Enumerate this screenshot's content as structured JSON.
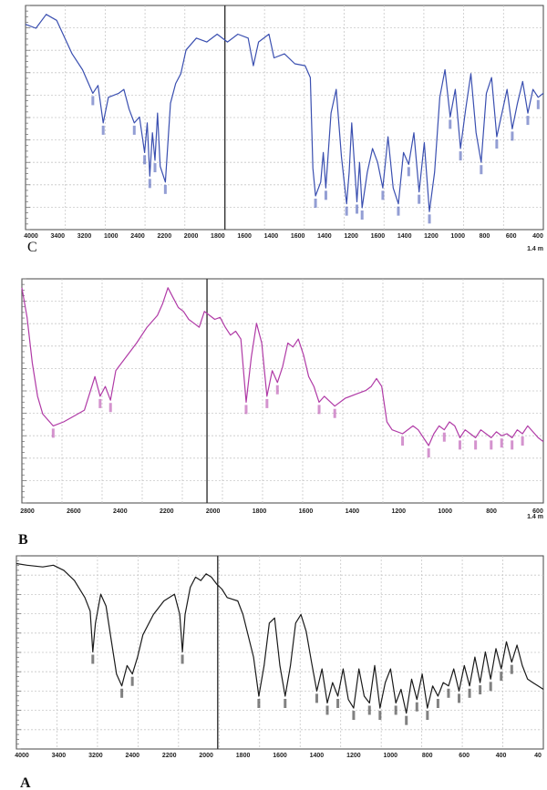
{
  "chart_data": [
    {
      "panel": "C",
      "type": "line",
      "label": "C",
      "unit_label": "1.4 m",
      "color": "#3a4fb0",
      "x_ticks": [
        "4000",
        "3400",
        "3200",
        "1000",
        "2400",
        "2200",
        "2000",
        "1800",
        "1600",
        "1400",
        "1600",
        "1400",
        "1200",
        "1600",
        "1400",
        "1200",
        "1000",
        "800",
        "600",
        "400"
      ],
      "split_at_fraction": 0.385,
      "profile": [
        [
          0.0,
          0.05
        ],
        [
          0.02,
          0.07
        ],
        [
          0.04,
          0.0
        ],
        [
          0.06,
          0.03
        ],
        [
          0.09,
          0.2
        ],
        [
          0.11,
          0.28
        ],
        [
          0.13,
          0.4
        ],
        [
          0.14,
          0.36
        ],
        [
          0.15,
          0.55
        ],
        [
          0.16,
          0.42
        ],
        [
          0.18,
          0.4
        ],
        [
          0.19,
          0.38
        ],
        [
          0.2,
          0.48
        ],
        [
          0.21,
          0.55
        ],
        [
          0.22,
          0.52
        ],
        [
          0.23,
          0.7
        ],
        [
          0.235,
          0.55
        ],
        [
          0.24,
          0.82
        ],
        [
          0.245,
          0.6
        ],
        [
          0.25,
          0.74
        ],
        [
          0.255,
          0.5
        ],
        [
          0.26,
          0.77
        ],
        [
          0.27,
          0.85
        ],
        [
          0.275,
          0.65
        ],
        [
          0.28,
          0.45
        ],
        [
          0.29,
          0.35
        ],
        [
          0.3,
          0.3
        ],
        [
          0.31,
          0.18
        ],
        [
          0.33,
          0.12
        ],
        [
          0.35,
          0.14
        ],
        [
          0.37,
          0.1
        ],
        [
          0.39,
          0.14
        ],
        [
          0.41,
          0.1
        ],
        [
          0.43,
          0.12
        ],
        [
          0.44,
          0.26
        ],
        [
          0.45,
          0.14
        ],
        [
          0.47,
          0.1
        ],
        [
          0.48,
          0.22
        ],
        [
          0.5,
          0.2
        ],
        [
          0.52,
          0.25
        ],
        [
          0.54,
          0.26
        ],
        [
          0.55,
          0.32
        ],
        [
          0.555,
          0.78
        ],
        [
          0.56,
          0.92
        ],
        [
          0.57,
          0.85
        ],
        [
          0.575,
          0.7
        ],
        [
          0.58,
          0.88
        ],
        [
          0.59,
          0.5
        ],
        [
          0.6,
          0.38
        ],
        [
          0.61,
          0.72
        ],
        [
          0.62,
          0.96
        ],
        [
          0.625,
          0.8
        ],
        [
          0.63,
          0.55
        ],
        [
          0.64,
          0.95
        ],
        [
          0.645,
          0.75
        ],
        [
          0.65,
          0.98
        ],
        [
          0.66,
          0.8
        ],
        [
          0.67,
          0.68
        ],
        [
          0.68,
          0.75
        ],
        [
          0.69,
          0.88
        ],
        [
          0.7,
          0.62
        ],
        [
          0.71,
          0.88
        ],
        [
          0.72,
          0.96
        ],
        [
          0.73,
          0.7
        ],
        [
          0.74,
          0.76
        ],
        [
          0.75,
          0.6
        ],
        [
          0.76,
          0.9
        ],
        [
          0.77,
          0.65
        ],
        [
          0.78,
          1.0
        ],
        [
          0.79,
          0.8
        ],
        [
          0.8,
          0.42
        ],
        [
          0.81,
          0.28
        ],
        [
          0.82,
          0.52
        ],
        [
          0.83,
          0.38
        ],
        [
          0.84,
          0.68
        ],
        [
          0.85,
          0.48
        ],
        [
          0.86,
          0.3
        ],
        [
          0.87,
          0.6
        ],
        [
          0.88,
          0.75
        ],
        [
          0.89,
          0.4
        ],
        [
          0.9,
          0.32
        ],
        [
          0.91,
          0.62
        ],
        [
          0.92,
          0.5
        ],
        [
          0.93,
          0.38
        ],
        [
          0.94,
          0.58
        ],
        [
          0.95,
          0.45
        ],
        [
          0.96,
          0.34
        ],
        [
          0.97,
          0.5
        ],
        [
          0.98,
          0.38
        ],
        [
          0.99,
          0.42
        ],
        [
          1.0,
          0.4
        ]
      ]
    },
    {
      "panel": "B",
      "type": "line",
      "label": "B",
      "unit_label": "1.4 m",
      "color": "#b03aa6",
      "x_ticks": [
        "2800",
        "2600",
        "2400",
        "2200",
        "2000",
        "1800",
        "1600",
        "1400",
        "1200",
        "1000",
        "800",
        "600"
      ],
      "split_at_fraction": 0.355,
      "profile": [
        [
          0.0,
          0.0
        ],
        [
          0.01,
          0.15
        ],
        [
          0.02,
          0.38
        ],
        [
          0.03,
          0.55
        ],
        [
          0.04,
          0.64
        ],
        [
          0.06,
          0.7
        ],
        [
          0.08,
          0.68
        ],
        [
          0.1,
          0.65
        ],
        [
          0.12,
          0.62
        ],
        [
          0.14,
          0.45
        ],
        [
          0.15,
          0.55
        ],
        [
          0.16,
          0.5
        ],
        [
          0.17,
          0.57
        ],
        [
          0.18,
          0.42
        ],
        [
          0.2,
          0.35
        ],
        [
          0.22,
          0.28
        ],
        [
          0.24,
          0.2
        ],
        [
          0.26,
          0.14
        ],
        [
          0.27,
          0.08
        ],
        [
          0.28,
          0.0
        ],
        [
          0.29,
          0.05
        ],
        [
          0.3,
          0.1
        ],
        [
          0.31,
          0.12
        ],
        [
          0.32,
          0.16
        ],
        [
          0.33,
          0.18
        ],
        [
          0.34,
          0.2
        ],
        [
          0.35,
          0.12
        ],
        [
          0.36,
          0.14
        ],
        [
          0.37,
          0.16
        ],
        [
          0.38,
          0.15
        ],
        [
          0.39,
          0.2
        ],
        [
          0.4,
          0.24
        ],
        [
          0.41,
          0.22
        ],
        [
          0.42,
          0.26
        ],
        [
          0.43,
          0.58
        ],
        [
          0.44,
          0.35
        ],
        [
          0.45,
          0.18
        ],
        [
          0.46,
          0.28
        ],
        [
          0.47,
          0.55
        ],
        [
          0.48,
          0.42
        ],
        [
          0.49,
          0.48
        ],
        [
          0.5,
          0.4
        ],
        [
          0.51,
          0.28
        ],
        [
          0.52,
          0.3
        ],
        [
          0.53,
          0.26
        ],
        [
          0.54,
          0.34
        ],
        [
          0.55,
          0.45
        ],
        [
          0.56,
          0.5
        ],
        [
          0.57,
          0.58
        ],
        [
          0.58,
          0.55
        ],
        [
          0.6,
          0.6
        ],
        [
          0.62,
          0.56
        ],
        [
          0.64,
          0.54
        ],
        [
          0.66,
          0.52
        ],
        [
          0.67,
          0.5
        ],
        [
          0.68,
          0.46
        ],
        [
          0.69,
          0.5
        ],
        [
          0.7,
          0.68
        ],
        [
          0.71,
          0.72
        ],
        [
          0.73,
          0.74
        ],
        [
          0.75,
          0.7
        ],
        [
          0.76,
          0.72
        ],
        [
          0.78,
          0.8
        ],
        [
          0.79,
          0.74
        ],
        [
          0.8,
          0.7
        ],
        [
          0.81,
          0.72
        ],
        [
          0.82,
          0.68
        ],
        [
          0.83,
          0.7
        ],
        [
          0.84,
          0.76
        ],
        [
          0.85,
          0.72
        ],
        [
          0.86,
          0.74
        ],
        [
          0.87,
          0.76
        ],
        [
          0.88,
          0.72
        ],
        [
          0.89,
          0.74
        ],
        [
          0.9,
          0.76
        ],
        [
          0.91,
          0.73
        ],
        [
          0.92,
          0.75
        ],
        [
          0.93,
          0.74
        ],
        [
          0.94,
          0.76
        ],
        [
          0.95,
          0.72
        ],
        [
          0.96,
          0.74
        ],
        [
          0.97,
          0.7
        ],
        [
          0.98,
          0.73
        ],
        [
          0.99,
          0.76
        ],
        [
          1.0,
          0.78
        ]
      ]
    },
    {
      "panel": "A",
      "type": "line",
      "label": "A",
      "unit_label": "",
      "color": "#1a1a1a",
      "x_ticks": [
        "4000",
        "3400",
        "3200",
        "2400",
        "2200",
        "2000",
        "1800",
        "1600",
        "1400",
        "1200",
        "1000",
        "800",
        "600",
        "400",
        "40"
      ],
      "split_at_fraction": 0.382,
      "profile": [
        [
          0.0,
          0.0
        ],
        [
          0.02,
          0.01
        ],
        [
          0.05,
          0.02
        ],
        [
          0.07,
          0.01
        ],
        [
          0.09,
          0.04
        ],
        [
          0.11,
          0.1
        ],
        [
          0.13,
          0.2
        ],
        [
          0.14,
          0.28
        ],
        [
          0.145,
          0.52
        ],
        [
          0.15,
          0.35
        ],
        [
          0.16,
          0.18
        ],
        [
          0.17,
          0.25
        ],
        [
          0.18,
          0.45
        ],
        [
          0.19,
          0.65
        ],
        [
          0.2,
          0.72
        ],
        [
          0.21,
          0.6
        ],
        [
          0.22,
          0.65
        ],
        [
          0.23,
          0.55
        ],
        [
          0.24,
          0.42
        ],
        [
          0.26,
          0.3
        ],
        [
          0.28,
          0.22
        ],
        [
          0.3,
          0.18
        ],
        [
          0.31,
          0.3
        ],
        [
          0.315,
          0.52
        ],
        [
          0.32,
          0.3
        ],
        [
          0.33,
          0.14
        ],
        [
          0.34,
          0.08
        ],
        [
          0.35,
          0.1
        ],
        [
          0.36,
          0.06
        ],
        [
          0.37,
          0.08
        ],
        [
          0.38,
          0.12
        ],
        [
          0.39,
          0.15
        ],
        [
          0.4,
          0.2
        ],
        [
          0.42,
          0.22
        ],
        [
          0.43,
          0.3
        ],
        [
          0.45,
          0.55
        ],
        [
          0.46,
          0.78
        ],
        [
          0.47,
          0.6
        ],
        [
          0.48,
          0.35
        ],
        [
          0.49,
          0.32
        ],
        [
          0.5,
          0.6
        ],
        [
          0.51,
          0.78
        ],
        [
          0.52,
          0.6
        ],
        [
          0.53,
          0.35
        ],
        [
          0.54,
          0.3
        ],
        [
          0.55,
          0.4
        ],
        [
          0.56,
          0.58
        ],
        [
          0.57,
          0.75
        ],
        [
          0.58,
          0.62
        ],
        [
          0.59,
          0.82
        ],
        [
          0.6,
          0.7
        ],
        [
          0.61,
          0.78
        ],
        [
          0.62,
          0.62
        ],
        [
          0.63,
          0.8
        ],
        [
          0.64,
          0.85
        ],
        [
          0.65,
          0.62
        ],
        [
          0.66,
          0.78
        ],
        [
          0.67,
          0.82
        ],
        [
          0.68,
          0.6
        ],
        [
          0.69,
          0.85
        ],
        [
          0.7,
          0.7
        ],
        [
          0.71,
          0.62
        ],
        [
          0.72,
          0.82
        ],
        [
          0.73,
          0.74
        ],
        [
          0.74,
          0.88
        ],
        [
          0.75,
          0.68
        ],
        [
          0.76,
          0.8
        ],
        [
          0.77,
          0.65
        ],
        [
          0.78,
          0.85
        ],
        [
          0.79,
          0.72
        ],
        [
          0.8,
          0.78
        ],
        [
          0.81,
          0.7
        ],
        [
          0.82,
          0.72
        ],
        [
          0.83,
          0.62
        ],
        [
          0.84,
          0.75
        ],
        [
          0.85,
          0.6
        ],
        [
          0.86,
          0.72
        ],
        [
          0.87,
          0.55
        ],
        [
          0.88,
          0.7
        ],
        [
          0.89,
          0.52
        ],
        [
          0.9,
          0.68
        ],
        [
          0.91,
          0.5
        ],
        [
          0.92,
          0.62
        ],
        [
          0.93,
          0.46
        ],
        [
          0.94,
          0.58
        ],
        [
          0.95,
          0.48
        ],
        [
          0.96,
          0.6
        ],
        [
          0.97,
          0.68
        ],
        [
          0.98,
          0.7
        ],
        [
          0.99,
          0.72
        ],
        [
          1.0,
          0.74
        ]
      ]
    }
  ]
}
